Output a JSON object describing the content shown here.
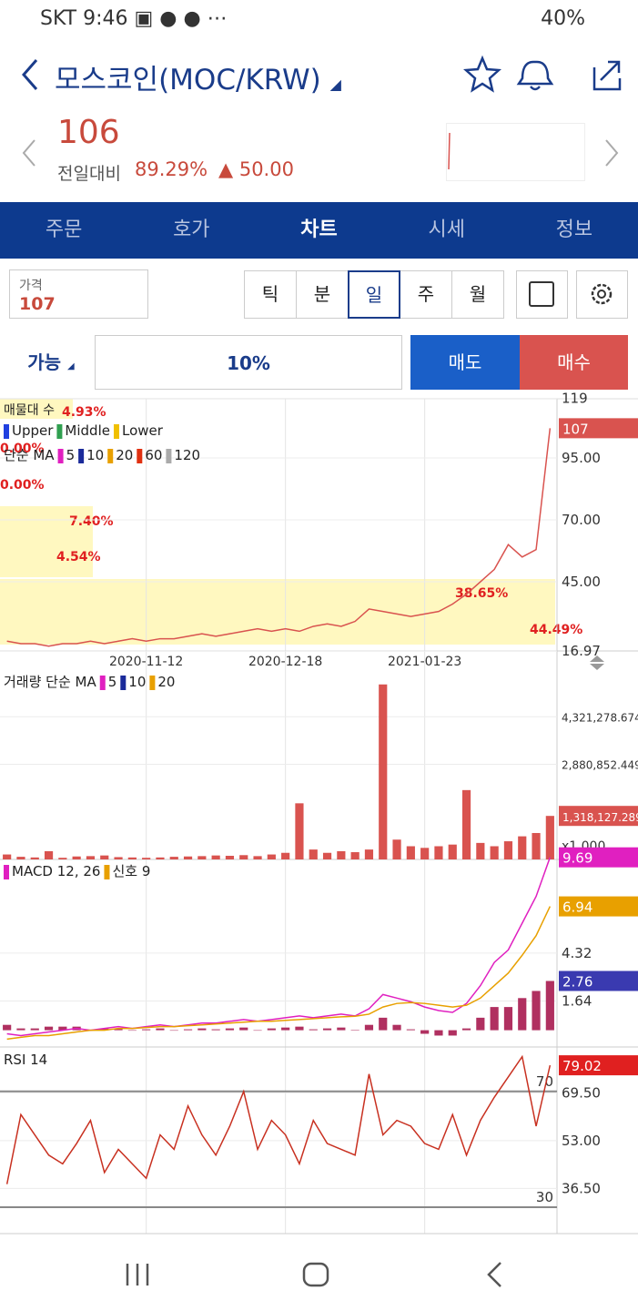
{
  "status_bar": {
    "carrier": "SKT",
    "time": "9:46",
    "battery": "40%"
  },
  "header": {
    "title": "모스코인(MOC/KRW)"
  },
  "quote": {
    "price": "106",
    "label": "전일대비",
    "change_pct": "89.29%",
    "change": "50.00"
  },
  "tabs": [
    "주문",
    "호가",
    "차트",
    "시세",
    "정보"
  ],
  "price_input": {
    "label": "가격",
    "value": "107"
  },
  "periods": [
    "틱",
    "분",
    "일",
    "주",
    "월"
  ],
  "order": {
    "mode": "가능",
    "ratio": "10%",
    "sell": "매도",
    "buy": "매수"
  },
  "annotations": [
    "매물대 수",
    "4.93%",
    "0.00%",
    "0.00%",
    "7.40%",
    "4.54%",
    "38.65%",
    "44.49%"
  ],
  "charts": [
    {
      "legend_rows": [
        [
          {
            "label": "Upper",
            "color": "#2040e0"
          },
          {
            "label": "Middle",
            "color": "#30a050"
          },
          {
            "label": "Lower",
            "color": "#f0c000"
          }
        ],
        [
          {
            "label": "단순 MA"
          },
          {
            "label": "5",
            "color": "#e020c0"
          },
          {
            "label": "10",
            "color": "#1a2a9a"
          },
          {
            "label": "20",
            "color": "#e8a000"
          },
          {
            "label": "60",
            "color": "#e03010"
          },
          {
            "label": "120",
            "color": "#aaaaaa"
          }
        ]
      ],
      "categories": [
        null,
        null,
        null,
        null,
        null,
        null,
        null,
        null,
        null,
        null,
        "2020-11-12",
        null,
        null,
        null,
        null,
        null,
        null,
        null,
        null,
        null,
        "2020-12-18",
        null,
        null,
        null,
        null,
        null,
        null,
        null,
        null,
        null,
        "2021-01-23",
        null,
        null,
        null,
        null,
        null,
        null,
        null,
        null,
        null
      ],
      "ylim": [
        17.06,
        118.9
      ],
      "yticks": [
        119,
        {
          "value": 95,
          "label": "95.00"
        },
        {
          "value": 70,
          "label": "70.00"
        },
        {
          "value": 45,
          "label": "45.00"
        },
        16.97
      ],
      "badges": [
        {
          "value": 107,
          "color": "#d9534f"
        }
      ],
      "series": [
        {
          "type": "line",
          "color": "#d9534f",
          "values": [
            21,
            20,
            20,
            19,
            20,
            20,
            21,
            20,
            21,
            22,
            21,
            22,
            22,
            23,
            24,
            23,
            24,
            25,
            26,
            25,
            26,
            25,
            27,
            28,
            27,
            29,
            34,
            33,
            32,
            31,
            32,
            33,
            36,
            40,
            45,
            50,
            60,
            55,
            58,
            107
          ]
        }
      ]
    },
    {
      "legend_rows": [
        [
          {
            "label": "거래량 단순 MA"
          },
          {
            "label": "5",
            "color": "#e020c0"
          },
          {
            "label": "10",
            "color": "#1a2a9a"
          },
          {
            "label": "20",
            "color": "#e8a000"
          }
        ]
      ],
      "unit": "x1,000",
      "ylim": [
        0,
        5680000
      ],
      "yticks": [
        {
          "value": 4321278.674,
          "label": "4,321,278.674"
        },
        {
          "value": 2880852.449,
          "label": "2,880,852.449"
        }
      ],
      "badges": [
        {
          "value": 1318127.289,
          "label": "1,318,127.289",
          "color": "#d9534f"
        }
      ],
      "series": [
        {
          "type": "bar",
          "color": "#d9534f",
          "values": [
            150000,
            80000,
            60000,
            250000,
            50000,
            90000,
            100000,
            120000,
            70000,
            60000,
            50000,
            60000,
            80000,
            90000,
            100000,
            120000,
            110000,
            130000,
            100000,
            150000,
            200000,
            1700000,
            300000,
            200000,
            250000,
            220000,
            300000,
            5300000,
            600000,
            400000,
            350000,
            400000,
            450000,
            2100000,
            500000,
            400000,
            550000,
            700000,
            800000,
            1318127.289
          ]
        }
      ]
    },
    {
      "legend_rows": [
        [
          {
            "label": "MACD 12, 26",
            "color": "#e020c0"
          },
          {
            "label": "신호 9",
            "color": "#e8a000"
          }
        ]
      ],
      "ylim": [
        -0.94,
        9.47
      ],
      "yticks": [
        4.32,
        1.64
      ],
      "badges": [
        {
          "value": 9.69,
          "color": "#e020c0"
        },
        {
          "value": 6.94,
          "color": "#e8a000"
        },
        {
          "value": 2.76,
          "color": "#3a3ab0"
        }
      ],
      "series": [
        {
          "type": "bar",
          "color": "#b03060",
          "values": [
            0.3,
            0.1,
            0.1,
            0.2,
            0.2,
            0.2,
            0,
            0.1,
            0.1,
            0,
            0.05,
            0.1,
            0,
            0.05,
            0.1,
            0.05,
            0.1,
            0.15,
            0,
            0.1,
            0.15,
            0.2,
            0.05,
            0.1,
            0.15,
            0.02,
            0.3,
            0.7,
            0.3,
            0.05,
            -0.2,
            -0.3,
            -0.3,
            0.1,
            0.7,
            1.3,
            1.3,
            1.8,
            2.2,
            2.76
          ]
        },
        {
          "type": "line",
          "color": "#e020c0",
          "values": [
            -0.2,
            -0.3,
            -0.2,
            -0.1,
            0,
            0.1,
            0,
            0.1,
            0.2,
            0.1,
            0.2,
            0.3,
            0.2,
            0.3,
            0.4,
            0.4,
            0.5,
            0.6,
            0.5,
            0.6,
            0.7,
            0.8,
            0.7,
            0.8,
            0.9,
            0.8,
            1.2,
            2.0,
            1.8,
            1.6,
            1.3,
            1.1,
            1.0,
            1.5,
            2.5,
            3.8,
            4.5,
            6.0,
            7.5,
            9.69
          ]
        },
        {
          "type": "line",
          "color": "#e8a000",
          "values": [
            -0.5,
            -0.4,
            -0.3,
            -0.3,
            -0.2,
            -0.1,
            0,
            0,
            0.1,
            0.1,
            0.15,
            0.2,
            0.2,
            0.25,
            0.3,
            0.35,
            0.4,
            0.45,
            0.5,
            0.5,
            0.55,
            0.6,
            0.65,
            0.7,
            0.75,
            0.78,
            0.9,
            1.3,
            1.5,
            1.55,
            1.5,
            1.4,
            1.3,
            1.4,
            1.8,
            2.5,
            3.2,
            4.2,
            5.3,
            6.94
          ]
        }
      ]
    },
    {
      "legend_rows": [
        [
          {
            "label": "RSI 14"
          }
        ]
      ],
      "ylim": [
        20.9,
        84.4
      ],
      "yticks": [
        {
          "value": 69.5,
          "label": "69.50"
        },
        {
          "value": 53,
          "label": "53.00"
        },
        {
          "value": 36.5,
          "label": "36.50"
        }
      ],
      "ref_lines": [
        70,
        30
      ],
      "badges": [
        {
          "value": 79.02,
          "color": "#e02020"
        }
      ],
      "series": [
        {
          "type": "line",
          "color": "#c83020",
          "values": [
            38,
            62,
            55,
            48,
            45,
            52,
            60,
            42,
            50,
            45,
            40,
            55,
            50,
            65,
            55,
            48,
            58,
            70,
            50,
            60,
            55,
            45,
            60,
            52,
            50,
            48,
            76,
            55,
            60,
            58,
            52,
            50,
            62,
            48,
            60,
            68,
            75,
            82,
            58,
            79.02
          ]
        }
      ]
    }
  ]
}
